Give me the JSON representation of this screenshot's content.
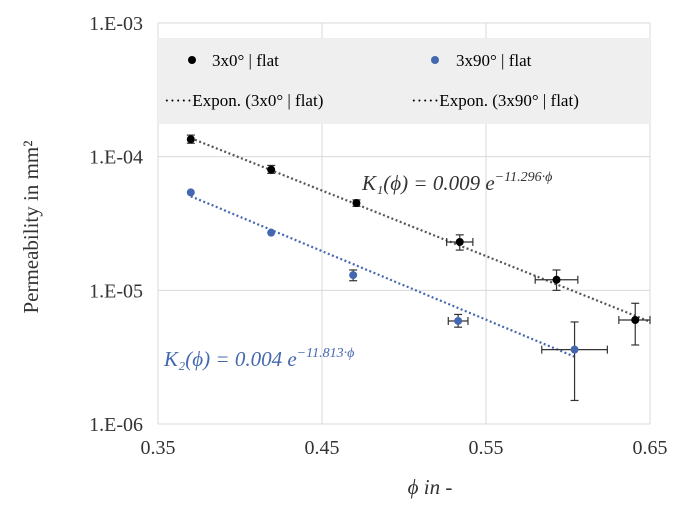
{
  "chart_data": {
    "type": "scatter",
    "xlabel": "ϕ in -",
    "ylabel": "Permeability in mm²",
    "xlim": [
      0.35,
      0.65
    ],
    "ylim": [
      1e-06,
      0.001
    ],
    "y_scale": "log",
    "x_ticks": [
      "0.35",
      "0.45",
      "0.55",
      "0.65"
    ],
    "y_ticks": [
      "1.E-06",
      "1.E-05",
      "1.E-04",
      "1.E-03"
    ],
    "grid": true,
    "legend_position": "top",
    "series": [
      {
        "name": "3x0° | flat",
        "color": "#000000",
        "marker": "circle",
        "points": [
          {
            "x": 0.37,
            "y": 0.000135,
            "y_low": 0.000126,
            "y_high": 0.000145
          },
          {
            "x": 0.419,
            "y": 8e-05,
            "y_low": 7.5e-05,
            "y_high": 8.6e-05
          },
          {
            "x": 0.471,
            "y": 4.5e-05,
            "y_low": 4.25e-05,
            "y_high": 4.75e-05
          },
          {
            "x": 0.534,
            "y": 2.3e-05,
            "y_low": 2e-05,
            "y_high": 2.6e-05,
            "x_low": 0.526,
            "x_high": 0.542
          },
          {
            "x": 0.593,
            "y": 1.2e-05,
            "y_low": 1e-05,
            "y_high": 1.42e-05,
            "x_low": 0.58,
            "x_high": 0.606
          },
          {
            "x": 0.641,
            "y": 6e-06,
            "y_low": 3.9e-06,
            "y_high": 8e-06,
            "x_low": 0.631,
            "x_high": 0.65
          }
        ]
      },
      {
        "name": "3x90° | flat",
        "color": "#4468B0",
        "marker": "circle",
        "points": [
          {
            "x": 0.37,
            "y": 5.4e-05
          },
          {
            "x": 0.419,
            "y": 2.7e-05
          },
          {
            "x": 0.469,
            "y": 1.3e-05,
            "y_low": 1.18e-05,
            "y_high": 1.42e-05
          },
          {
            "x": 0.533,
            "y": 5.9e-06,
            "y_low": 5.3e-06,
            "y_high": 6.6e-06,
            "x_low": 0.527,
            "x_high": 0.539
          },
          {
            "x": 0.604,
            "y": 3.6e-06,
            "y_low": 1.5e-06,
            "y_high": 5.8e-06,
            "x_low": 0.584,
            "x_high": 0.624
          }
        ]
      }
    ],
    "trendlines": [
      {
        "name": "Expon. (3x0° | flat)",
        "color": "#555555",
        "style": "dotted",
        "a": 0.009,
        "b": -11.296,
        "x_range": [
          0.37,
          0.65
        ]
      },
      {
        "name": "Expon. (3x90° | flat)",
        "color": "#4468B0",
        "style": "dotted",
        "a": 0.004,
        "b": -11.813,
        "x_range": [
          0.37,
          0.605
        ]
      }
    ],
    "annotations": [
      {
        "lhs": "K₁(ϕ) = 0.009 e",
        "exp": "−11.296·ϕ",
        "color": "#333333"
      },
      {
        "lhs": "K₂(ϕ) = 0.004 e",
        "exp": "−11.813·ϕ",
        "color": "#4468B0"
      }
    ],
    "legend": {
      "entries": [
        "3x0° | flat",
        "3x90° | flat",
        "·····Expon. (3x0° | flat)",
        "·····Expon. (3x90° | flat)"
      ],
      "background": "#EFEFEF"
    }
  }
}
